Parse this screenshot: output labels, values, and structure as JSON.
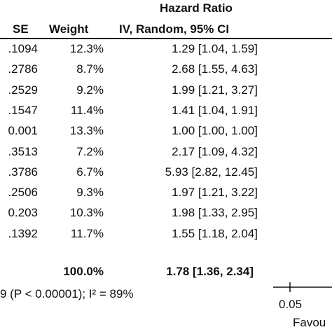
{
  "chart_data": {
    "type": "table",
    "header": {
      "group_title": "Hazard Ratio",
      "col_se": "SE",
      "col_weight": "Weight",
      "col_hr": "IV, Random, 95% CI"
    },
    "rows": [
      {
        "se": ".1094",
        "weight": "12.3%",
        "hr": "1.29 [1.04, 1.59]",
        "est": 1.29,
        "lo": 1.04,
        "hi": 1.59
      },
      {
        "se": ".2786",
        "weight": "8.7%",
        "hr": "2.68 [1.55, 4.63]",
        "est": 2.68,
        "lo": 1.55,
        "hi": 4.63
      },
      {
        "se": ".2529",
        "weight": "9.2%",
        "hr": "1.99 [1.21, 3.27]",
        "est": 1.99,
        "lo": 1.21,
        "hi": 3.27
      },
      {
        "se": ".1547",
        "weight": "11.4%",
        "hr": "1.41 [1.04, 1.91]",
        "est": 1.41,
        "lo": 1.04,
        "hi": 1.91
      },
      {
        "se": "0.001",
        "weight": "13.3%",
        "hr": "1.00 [1.00, 1.00]",
        "est": 1.0,
        "lo": 1.0,
        "hi": 1.0
      },
      {
        "se": ".3513",
        "weight": "7.2%",
        "hr": "2.17 [1.09, 4.32]",
        "est": 2.17,
        "lo": 1.09,
        "hi": 4.32
      },
      {
        "se": ".3786",
        "weight": "6.7%",
        "hr": "5.93 [2.82, 12.45]",
        "est": 5.93,
        "lo": 2.82,
        "hi": 12.45
      },
      {
        "se": ".2506",
        "weight": "9.3%",
        "hr": "1.97 [1.21, 3.22]",
        "est": 1.97,
        "lo": 1.21,
        "hi": 3.22
      },
      {
        "se": "0.203",
        "weight": "10.3%",
        "hr": "1.98 [1.33, 2.95]",
        "est": 1.98,
        "lo": 1.33,
        "hi": 2.95
      },
      {
        "se": ".1392",
        "weight": "11.7%",
        "hr": "1.55 [1.18, 2.04]",
        "est": 1.55,
        "lo": 1.18,
        "hi": 2.04
      }
    ],
    "total": {
      "weight": "100.0%",
      "hr": "1.78 [1.36, 2.34]",
      "est": 1.78,
      "lo": 1.36,
      "hi": 2.34
    },
    "heterogeneity": "9 (P < 0.00001); I² = 89%",
    "axis": {
      "scale": "log",
      "tick_label": "0.05",
      "favours_label": "Favou"
    }
  }
}
